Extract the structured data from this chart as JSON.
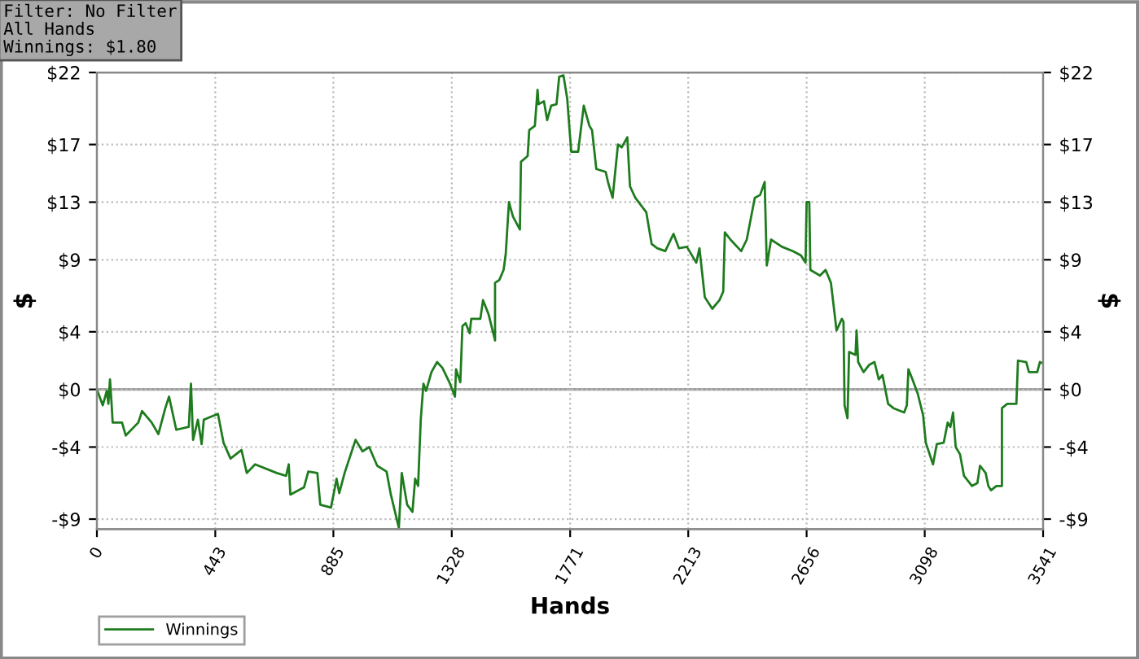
{
  "chart_data": {
    "type": "line",
    "xlabel": "Hands",
    "ylabel": "$",
    "y2label": "$",
    "annotations": [
      "Filter: No Filter",
      "All Hands",
      "Winnings: $1.80"
    ],
    "x": [
      0,
      22,
      37,
      43,
      49,
      55,
      59,
      94,
      108,
      155,
      169,
      205,
      230,
      256,
      270,
      297,
      344,
      352,
      360,
      378,
      392,
      400,
      453,
      474,
      500,
      541,
      561,
      592,
      673,
      708,
      718,
      724,
      775,
      791,
      825,
      836,
      876,
      897,
      907,
      927,
      968,
      994,
      1019,
      1049,
      1084,
      1100,
      1130,
      1141,
      1161,
      1181,
      1191,
      1202,
      1212,
      1222,
      1232,
      1252,
      1273,
      1293,
      1319,
      1340,
      1344,
      1360,
      1368,
      1380,
      1395,
      1401,
      1435,
      1445,
      1466,
      1490,
      1490,
      1506,
      1522,
      1530,
      1542,
      1557,
      1583,
      1587,
      1612,
      1618,
      1639,
      1649,
      1653,
      1673,
      1685,
      1700,
      1720,
      1730,
      1746,
      1760,
      1775,
      1801,
      1822,
      1843,
      1853,
      1869,
      1904,
      1914,
      1930,
      1950,
      1964,
      1985,
      1995,
      2015,
      2056,
      2076,
      2097,
      2127,
      2158,
      2178,
      2208,
      2243,
      2255,
      2275,
      2303,
      2330,
      2344,
      2350,
      2371,
      2411,
      2432,
      2462,
      2482,
      2499,
      2507,
      2523,
      2564,
      2605,
      2635,
      2652,
      2656,
      2666,
      2670,
      2706,
      2727,
      2747,
      2768,
      2788,
      2794,
      2798,
      2809,
      2815,
      2839,
      2843,
      2849,
      2869,
      2890,
      2910,
      2926,
      2940,
      2961,
      2981,
      3021,
      3031,
      3037,
      3052,
      3072,
      3092,
      3102,
      3129,
      3143,
      3169,
      3184,
      3194,
      3204,
      3214,
      3230,
      3245,
      3275,
      3295,
      3305,
      3326,
      3336,
      3346,
      3366,
      3387,
      3387,
      3407,
      3441,
      3447,
      3478,
      3488,
      3519,
      3529,
      3541
    ],
    "series": [
      {
        "name": "Winnings",
        "color": "#1e7b1e",
        "values": [
          0.0,
          -1.1,
          -0.1,
          -1.0,
          0.7,
          -1.0,
          -2.3,
          -2.3,
          -3.2,
          -2.3,
          -1.5,
          -2.3,
          -3.1,
          -1.3,
          -0.5,
          -2.8,
          -2.6,
          0.4,
          -3.5,
          -2.1,
          -3.8,
          -2.1,
          -1.7,
          -3.7,
          -4.8,
          -4.2,
          -5.8,
          -5.2,
          -5.8,
          -6.0,
          -5.2,
          -7.3,
          -6.8,
          -5.7,
          -5.8,
          -8.0,
          -8.2,
          -6.2,
          -7.2,
          -5.8,
          -3.5,
          -4.3,
          -4.0,
          -5.3,
          -5.7,
          -7.3,
          -9.6,
          -5.8,
          -8.0,
          -8.5,
          -6.2,
          -6.7,
          -2.1,
          0.4,
          -0.1,
          1.2,
          1.9,
          1.5,
          0.5,
          -0.5,
          1.4,
          0.5,
          4.4,
          4.6,
          3.9,
          4.9,
          4.9,
          6.2,
          5.2,
          3.4,
          7.4,
          7.6,
          8.3,
          9.4,
          13.0,
          12.0,
          11.1,
          15.8,
          16.2,
          18.0,
          18.3,
          20.8,
          19.8,
          20.0,
          18.7,
          19.7,
          19.8,
          21.7,
          21.8,
          20.2,
          16.5,
          16.5,
          19.7,
          18.3,
          18.0,
          15.3,
          15.1,
          14.3,
          13.3,
          17.0,
          16.8,
          17.5,
          14.1,
          13.3,
          12.3,
          10.1,
          9.8,
          9.6,
          10.8,
          9.8,
          9.9,
          8.8,
          9.8,
          6.4,
          5.6,
          6.2,
          6.8,
          10.9,
          10.4,
          9.6,
          10.4,
          13.3,
          13.5,
          14.4,
          8.6,
          10.4,
          9.9,
          9.6,
          9.3,
          8.8,
          13.0,
          13.0,
          8.3,
          7.9,
          8.3,
          7.4,
          4.1,
          4.9,
          4.7,
          -1.1,
          -2.0,
          2.6,
          2.4,
          4.1,
          1.9,
          1.2,
          1.7,
          1.9,
          0.7,
          1.0,
          -1.0,
          -1.3,
          -1.6,
          -1.1,
          1.4,
          0.7,
          -0.3,
          -1.8,
          -3.7,
          -5.2,
          -3.8,
          -3.7,
          -2.3,
          -2.6,
          -1.6,
          -4.0,
          -4.5,
          -6.0,
          -6.7,
          -6.5,
          -5.3,
          -5.8,
          -6.7,
          -7.0,
          -6.7,
          -6.7,
          -1.3,
          -1.0,
          -1.0,
          2.0,
          1.9,
          1.2,
          1.2,
          1.9,
          1.8
        ]
      }
    ],
    "xlim": [
      0,
      3541
    ],
    "xticks": [
      0,
      443,
      885,
      1328,
      1771,
      2213,
      2656,
      3098,
      3541
    ],
    "ylim": [
      -9.7,
      22
    ],
    "yticks": [
      {
        "value": -9,
        "label": "-$9"
      },
      {
        "value": -4,
        "label": "-$4"
      },
      {
        "value": 0,
        "label": "$0"
      },
      {
        "value": 4,
        "label": "$4"
      },
      {
        "value": 9,
        "label": "$9"
      },
      {
        "value": 13,
        "label": "$13"
      },
      {
        "value": 17,
        "label": "$17"
      },
      {
        "value": 22,
        "label": "$22"
      }
    ],
    "y2lim": [
      -9.7,
      22
    ],
    "y2ticks": [
      {
        "value": -9,
        "label": "-$9"
      },
      {
        "value": -4,
        "label": "-$4"
      },
      {
        "value": 0,
        "label": "$0"
      },
      {
        "value": 4,
        "label": "$4"
      },
      {
        "value": 9,
        "label": "$9"
      },
      {
        "value": 13,
        "label": "$13"
      },
      {
        "value": 17,
        "label": "$17"
      },
      {
        "value": 22,
        "label": "$22"
      }
    ],
    "ref_lines": [
      {
        "axis": "y",
        "value": 0,
        "color": "#a0a0a0"
      }
    ],
    "grid": true,
    "legend": "bottom left",
    "marker": "none",
    "line_style": "solid"
  }
}
